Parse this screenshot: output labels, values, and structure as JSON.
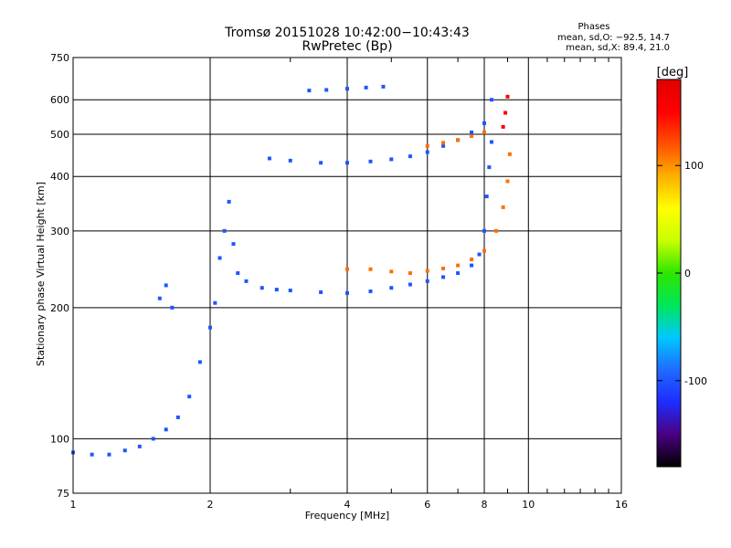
{
  "chart_data": {
    "type": "scatter",
    "title": "Tromsø 20151028 10:42:00−10:43:43",
    "subtitle": "RwPretec (Bp)",
    "xlabel": "Frequency [MHz]",
    "ylabel": "Stationary phase Virtual Height [km]",
    "x_scale": "log",
    "y_scale": "log",
    "xlim": [
      1,
      16
    ],
    "ylim": [
      75,
      750
    ],
    "x_ticks": [
      1,
      2,
      4,
      6,
      8,
      10,
      16
    ],
    "y_ticks": [
      75,
      100,
      200,
      300,
      400,
      500,
      600,
      750
    ],
    "grid": true,
    "stats": {
      "title": "Phases",
      "line_o": "mean, sd,O: −92.5, 14.7",
      "line_x": "mean, sd,X:  89.4, 21.0"
    },
    "colorbar": {
      "label": "[deg]",
      "range": [
        -180,
        180
      ],
      "ticks": [
        100,
        0,
        -100
      ],
      "stops": [
        "#000000",
        "#4b0082",
        "#1e2cff",
        "#1f6bff",
        "#00c8ff",
        "#00e65a",
        "#2ee600",
        "#c8ff00",
        "#ffff00",
        "#ffb000",
        "#ff5000",
        "#ff0000",
        "#e00000"
      ]
    },
    "series": [
      {
        "phase_deg": -100,
        "points": [
          [
            1.0,
            93
          ],
          [
            1.1,
            92
          ],
          [
            1.2,
            92
          ],
          [
            1.3,
            94
          ],
          [
            1.4,
            96
          ],
          [
            1.5,
            100
          ],
          [
            1.6,
            105
          ],
          [
            1.7,
            112
          ],
          [
            1.8,
            125
          ],
          [
            1.9,
            150
          ],
          [
            2.0,
            180
          ],
          [
            2.05,
            205
          ],
          [
            2.1,
            260
          ],
          [
            2.15,
            300
          ],
          [
            2.2,
            350
          ],
          [
            2.25,
            280
          ],
          [
            2.3,
            240
          ],
          [
            2.4,
            230
          ],
          [
            2.6,
            222
          ],
          [
            2.8,
            220
          ],
          [
            3.0,
            219
          ],
          [
            3.5,
            217
          ],
          [
            4.0,
            216
          ],
          [
            4.5,
            218
          ],
          [
            5.0,
            222
          ],
          [
            5.5,
            226
          ],
          [
            6.0,
            230
          ],
          [
            6.5,
            235
          ],
          [
            7.0,
            240
          ],
          [
            7.5,
            250
          ],
          [
            7.8,
            265
          ],
          [
            8.0,
            300
          ],
          [
            8.1,
            360
          ],
          [
            8.2,
            420
          ],
          [
            8.3,
            480
          ],
          [
            2.7,
            440
          ],
          [
            3.0,
            435
          ],
          [
            3.5,
            430
          ],
          [
            4.0,
            430
          ],
          [
            4.5,
            433
          ],
          [
            5.0,
            438
          ],
          [
            5.5,
            445
          ],
          [
            6.0,
            455
          ],
          [
            6.5,
            470
          ],
          [
            7.0,
            485
          ],
          [
            7.5,
            505
          ],
          [
            8.0,
            530
          ],
          [
            8.3,
            600
          ],
          [
            3.3,
            630
          ],
          [
            3.6,
            632
          ],
          [
            4.0,
            636
          ],
          [
            4.4,
            640
          ],
          [
            4.8,
            643
          ],
          [
            1.55,
            210
          ],
          [
            1.6,
            225
          ],
          [
            1.65,
            200
          ]
        ]
      },
      {
        "phase_deg": 110,
        "points": [
          [
            4.0,
            245
          ],
          [
            4.5,
            245
          ],
          [
            5.0,
            242
          ],
          [
            5.5,
            240
          ],
          [
            6.0,
            243
          ],
          [
            6.5,
            246
          ],
          [
            7.0,
            250
          ],
          [
            7.5,
            258
          ],
          [
            8.0,
            270
          ],
          [
            8.5,
            300
          ],
          [
            8.8,
            340
          ],
          [
            9.0,
            390
          ],
          [
            9.1,
            450
          ],
          [
            6.0,
            470
          ],
          [
            6.5,
            478
          ],
          [
            7.0,
            485
          ],
          [
            7.5,
            495
          ],
          [
            8.0,
            505
          ]
        ]
      },
      {
        "phase_deg": 160,
        "points": [
          [
            8.9,
            560
          ],
          [
            9.0,
            610
          ],
          [
            8.8,
            520
          ]
        ]
      }
    ]
  }
}
